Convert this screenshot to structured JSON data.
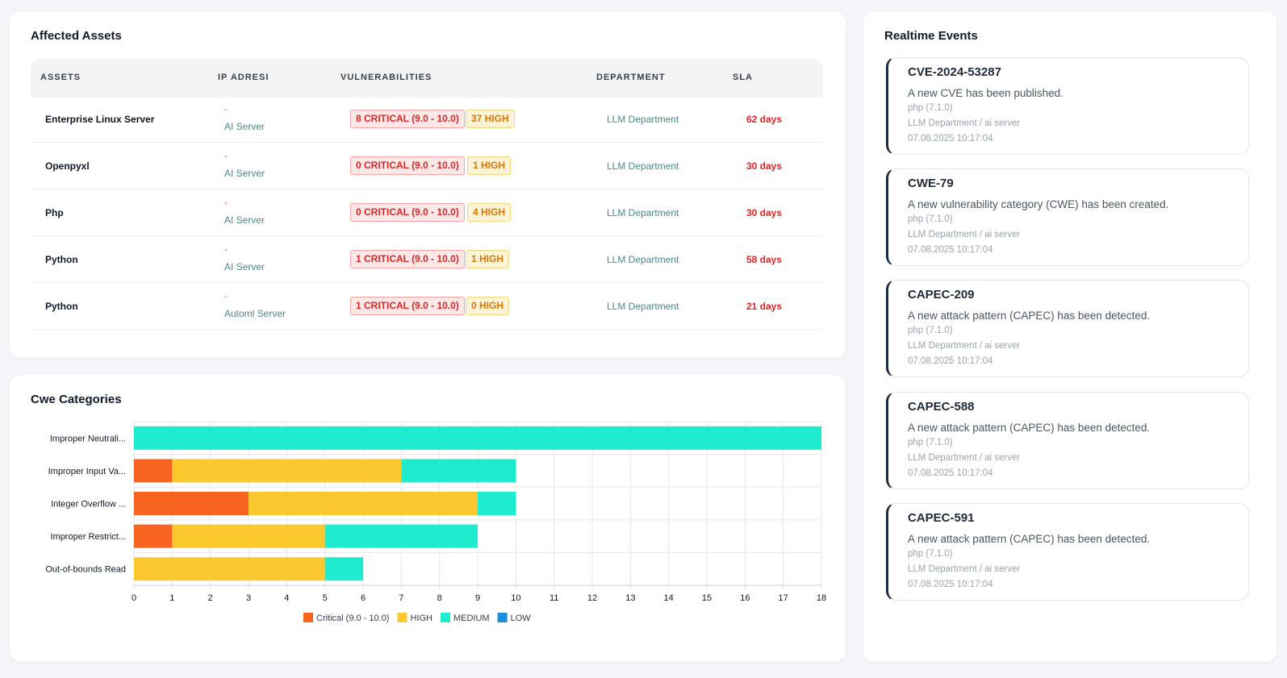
{
  "assets": {
    "title": "Affected Assets",
    "columns": [
      "ASSETS",
      "IP ADRESI",
      "VULNERABILITIES",
      "DEPARTMENT",
      "SLA"
    ],
    "rows": [
      {
        "name": "Enterprise Linux Server",
        "ip": "-",
        "server": "AI Server",
        "critical": "8 CRITICAL (9.0 - 10.0)",
        "high": "37 HIGH",
        "department": "LLM Department",
        "sla": "62 days"
      },
      {
        "name": "Openpyxl",
        "ip": "-",
        "server": "AI Server",
        "critical": "0 CRITICAL (9.0 - 10.0)",
        "high": "1 HIGH",
        "department": "LLM Department",
        "sla": "30 days"
      },
      {
        "name": "Php",
        "ip": "-",
        "server": "AI Server",
        "critical": "0 CRITICAL (9.0 - 10.0)",
        "high": "4 HIGH",
        "department": "LLM Department",
        "sla": "30 days"
      },
      {
        "name": "Python",
        "ip": "-",
        "server": "AI Server",
        "critical": "1 CRITICAL (9.0 - 10.0)",
        "high": "1 HIGH",
        "department": "LLM Department",
        "sla": "58 days"
      },
      {
        "name": "Python",
        "ip": "-",
        "server": "Automl Server",
        "critical": "1 CRITICAL (9.0 - 10.0)",
        "high": "0 HIGH",
        "department": "LLM Department",
        "sla": "21 days"
      }
    ]
  },
  "cwe": {
    "title": "Cwe Categories"
  },
  "chart_data": {
    "type": "bar",
    "orientation": "horizontal",
    "stacked": true,
    "title": "Cwe Categories",
    "categories": [
      "Improper Neutrali...",
      "Improper Input Va...",
      "Integer Overflow ...",
      "Improper Restrict...",
      "Out-of-bounds Read"
    ],
    "series": [
      {
        "name": "Critical (9.0 - 10.0)",
        "color": "#f86320",
        "values": [
          0,
          1,
          3,
          1,
          0
        ]
      },
      {
        "name": "HIGH",
        "color": "#fbc92f",
        "values": [
          0,
          6,
          6,
          4,
          5
        ]
      },
      {
        "name": "MEDIUM",
        "color": "#1feccf",
        "values": [
          18,
          3,
          1,
          4,
          1
        ]
      },
      {
        "name": "LOW",
        "color": "#1d8fe1",
        "values": [
          0,
          0,
          0,
          0,
          0
        ]
      }
    ],
    "xlim": [
      0,
      18
    ],
    "xticks": [
      0,
      1,
      2,
      3,
      4,
      5,
      6,
      7,
      8,
      9,
      10,
      11,
      12,
      13,
      14,
      15,
      16,
      17,
      18
    ],
    "grid": true,
    "legend": "bottom"
  },
  "events": {
    "title": "Realtime Events",
    "items": [
      {
        "id": "CVE-2024-53287",
        "description": "A new CVE has been published.",
        "package": "php (7.1.0)",
        "location": "LLM Department / ai server",
        "timestamp": "07.08.2025 10:17:04"
      },
      {
        "id": "CWE-79",
        "description": "A new vulnerability category (CWE) has been created.",
        "package": "php (7.1.0)",
        "location": "LLM Department / ai server",
        "timestamp": "07.08.2025 10:17:04"
      },
      {
        "id": "CAPEC-209",
        "description": "A new attack pattern (CAPEC) has been detected.",
        "package": "php (7.1.0)",
        "location": "LLM Department / ai server",
        "timestamp": "07.08.2025 10:17:04"
      },
      {
        "id": "CAPEC-588",
        "description": "A new attack pattern (CAPEC) has been detected.",
        "package": "php (7.1.0)",
        "location": "LLM Department / ai server",
        "timestamp": "07.08.2025 10:17:04"
      },
      {
        "id": "CAPEC-591",
        "description": "A new attack pattern (CAPEC) has been detected.",
        "package": "php (7.1.0)",
        "location": "LLM Department / ai server",
        "timestamp": "07.08.2025 10:17:04"
      }
    ]
  }
}
